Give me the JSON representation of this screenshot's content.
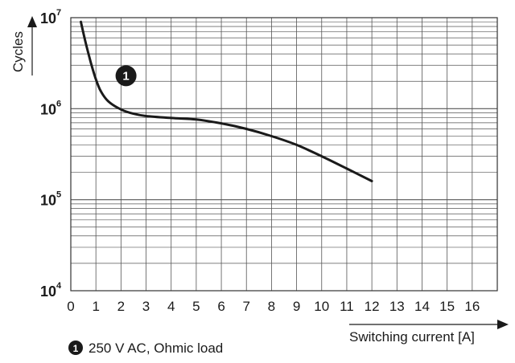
{
  "chart_data": {
    "type": "line",
    "xlabel": "Switching current [A]",
    "ylabel": "Cycles",
    "xlim": [
      0,
      17
    ],
    "ylim": [
      10000,
      10000000
    ],
    "yscale": "log",
    "grid": true,
    "x_ticks": [
      "0",
      "1",
      "2",
      "3",
      "4",
      "5",
      "6",
      "7",
      "8",
      "9",
      "10",
      "11",
      "12",
      "13",
      "14",
      "15",
      "16"
    ],
    "y_ticks": [
      {
        "base": "10",
        "exp": "4",
        "value": 10000
      },
      {
        "base": "10",
        "exp": "5",
        "value": 100000
      },
      {
        "base": "10",
        "exp": "6",
        "value": 1000000
      },
      {
        "base": "10",
        "exp": "7",
        "value": 10000000
      }
    ],
    "series": [
      {
        "name": "250 V AC, Ohmic load",
        "marker": "1",
        "x": [
          0.4,
          0.6,
          0.8,
          1.0,
          1.2,
          1.5,
          2.0,
          2.5,
          3.0,
          4.0,
          5.0,
          6.0,
          7.0,
          8.0,
          9.0,
          10.0,
          11.0,
          12.0
        ],
        "y": [
          9000000,
          5200000,
          3200000,
          2100000,
          1550000,
          1200000,
          980000,
          880000,
          830000,
          790000,
          760000,
          690000,
          600000,
          500000,
          400000,
          300000,
          220000,
          160000
        ]
      }
    ],
    "annotation": {
      "label": "1",
      "x": 2.2,
      "y": 2300000
    }
  },
  "legend": {
    "marker": "1",
    "text": "250 V AC, Ohmic load"
  }
}
